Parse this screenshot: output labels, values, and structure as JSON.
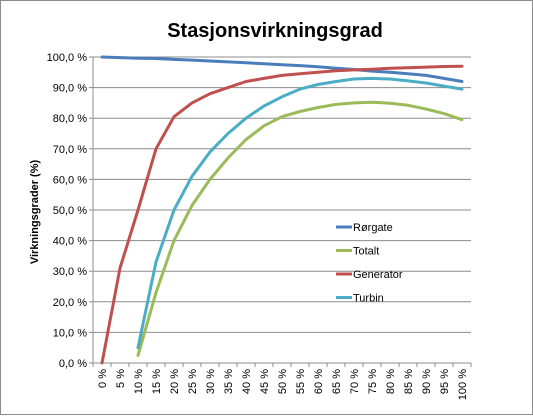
{
  "chart_data": {
    "type": "line",
    "title": "Stasjonsvirkningsgrad",
    "xlabel": "",
    "ylabel": "Virkningsgrader (%)",
    "x": [
      "0 %",
      "5 %",
      "10 %",
      "15 %",
      "20 %",
      "25 %",
      "30 %",
      "35 %",
      "40 %",
      "45 %",
      "50 %",
      "55 %",
      "60 %",
      "65 %",
      "70 %",
      "75 %",
      "80 %",
      "85 %",
      "90 %",
      "95 %",
      "100 %"
    ],
    "ylim": [
      0,
      100
    ],
    "yticks": [
      "0,0 %",
      "10,0 %",
      "20,0 %",
      "30,0 %",
      "40,0 %",
      "50,0 %",
      "60,0 %",
      "70,0 %",
      "80,0 %",
      "90,0 %",
      "100,0 %"
    ],
    "grid": "horizontal",
    "legend_position": "right",
    "series": [
      {
        "name": "Rørgate",
        "color": "#4a7ebb",
        "values": [
          100,
          99.8,
          99.6,
          99.5,
          99.2,
          99,
          98.7,
          98.4,
          98.1,
          97.8,
          97.5,
          97.2,
          96.8,
          96.3,
          95.9,
          95.4,
          95,
          94.5,
          94,
          93,
          92
        ]
      },
      {
        "name": "Totalt",
        "color": "#9bbb59",
        "values": [
          null,
          null,
          2.5,
          23,
          40,
          51.5,
          60,
          67,
          73,
          77.5,
          80.5,
          82.2,
          83.5,
          84.5,
          85,
          85.2,
          84.9,
          84.2,
          83,
          81.5,
          79.5
        ]
      },
      {
        "name": "Generator",
        "color": "#c0504d",
        "values": [
          0,
          31,
          50,
          70,
          80.5,
          85,
          88,
          90,
          92,
          93,
          94,
          94.5,
          95,
          95.5,
          95.8,
          96,
          96.3,
          96.5,
          96.7,
          96.9,
          97
        ]
      },
      {
        "name": "Turbin",
        "color": "#4bacc6",
        "values": [
          null,
          null,
          5,
          33,
          50,
          61,
          69,
          75,
          80,
          84,
          87,
          89.5,
          91,
          92,
          92.8,
          93,
          92.8,
          92.2,
          91.5,
          90.5,
          89.5
        ]
      }
    ]
  }
}
